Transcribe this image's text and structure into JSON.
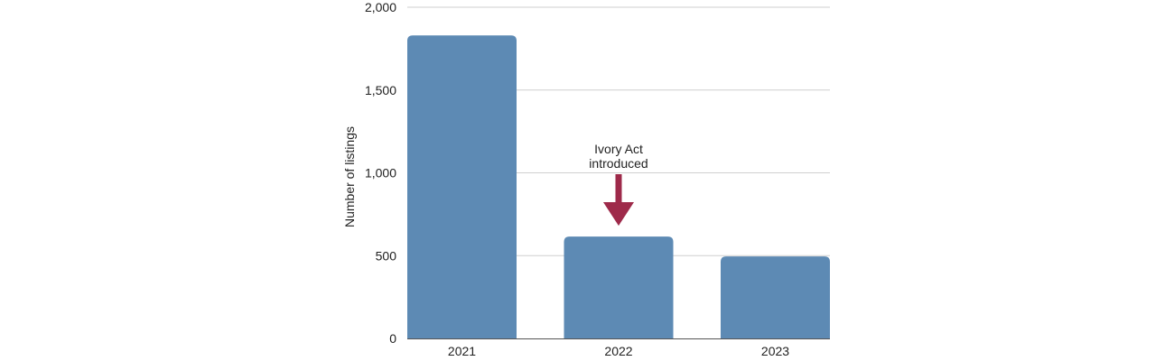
{
  "chart_data": {
    "type": "bar",
    "title": "",
    "xlabel": "",
    "ylabel": "Number of listings",
    "categories": [
      "2021",
      "2022",
      "2023"
    ],
    "values": [
      1830,
      615,
      495
    ],
    "ylim": [
      0,
      2000
    ],
    "yticks": [
      0,
      500,
      1000,
      1500,
      2000
    ],
    "ytick_labels": [
      "0",
      "500",
      "1,000",
      "1,500",
      "2,000"
    ],
    "grid": true,
    "legend": "none",
    "colors": {
      "bar": "#5d8ab4",
      "annotation_arrow": "#9e2a4a"
    },
    "annotations": [
      {
        "category": "2022",
        "lines": [
          "Ivory Act",
          "introduced"
        ],
        "arrow": "down"
      }
    ]
  }
}
